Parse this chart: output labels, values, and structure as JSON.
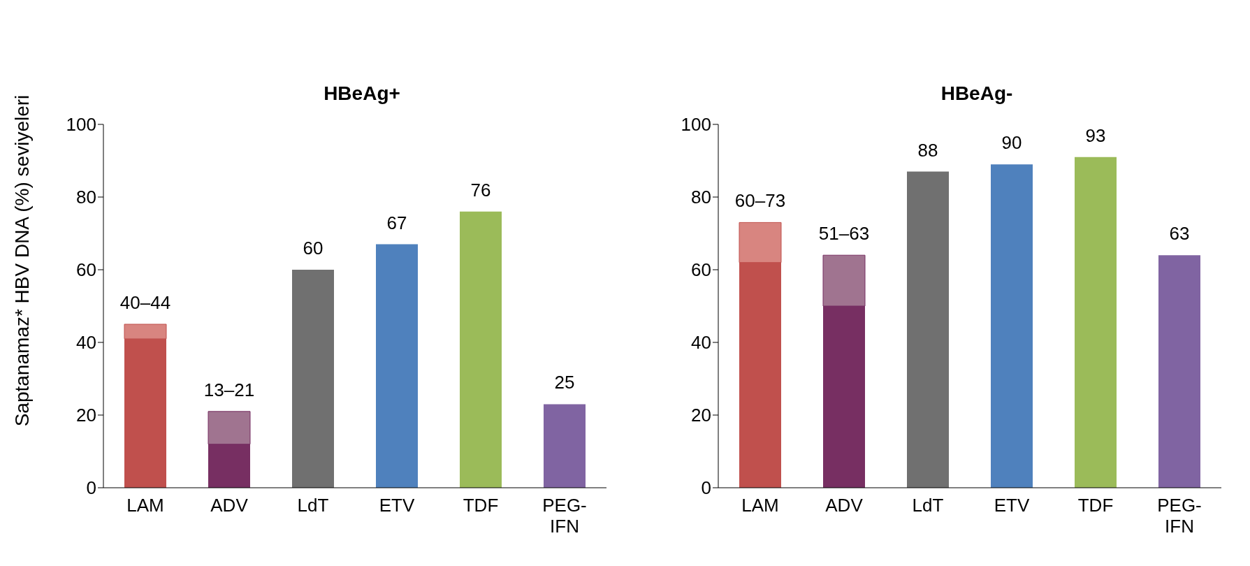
{
  "chart_data": [
    {
      "type": "bar",
      "title": "HBeAg+",
      "ylabel": "Saptanamaz* HBV DNA (%) seviyeleri",
      "categories": [
        "LAM",
        "ADV",
        "LdT",
        "ETV",
        "TDF",
        "PEG-IFN"
      ],
      "stacked": true,
      "ylim": [
        0,
        100
      ],
      "yticks": [
        0,
        20,
        40,
        60,
        80,
        100
      ],
      "grid": false,
      "legend": false,
      "series": [
        {
          "values": [
            41,
            12,
            60,
            67,
            76,
            23
          ],
          "colors": [
            "#c0504d",
            "#772f62",
            "#707070",
            "#4f81bd",
            "#9bbb59",
            "#8064a2"
          ]
        },
        {
          "values": [
            4,
            9,
            null,
            null,
            null,
            null
          ],
          "colors": [
            "#d88580",
            "#a07490",
            null,
            null,
            null,
            null
          ]
        }
      ],
      "value_labels": [
        "40–44",
        "13–21",
        "60",
        "67",
        "76",
        "25"
      ]
    },
    {
      "type": "bar",
      "title": "HBeAg-",
      "categories": [
        "LAM",
        "ADV",
        "LdT",
        "ETV",
        "TDF",
        "PEG-IFN"
      ],
      "stacked": true,
      "ylim": [
        0,
        100
      ],
      "yticks": [
        0,
        20,
        40,
        60,
        80,
        100
      ],
      "grid": false,
      "legend": false,
      "series": [
        {
          "values": [
            62,
            50,
            87,
            89,
            91,
            64
          ],
          "colors": [
            "#c0504d",
            "#772f62",
            "#707070",
            "#4f81bd",
            "#9bbb59",
            "#8064a2"
          ]
        },
        {
          "values": [
            11,
            14,
            null,
            null,
            null,
            null
          ],
          "colors": [
            "#d88580",
            "#a07490",
            null,
            null,
            null,
            null
          ]
        }
      ],
      "value_labels": [
        "60–73",
        "51–63",
        "88",
        "90",
        "93",
        "63"
      ]
    }
  ]
}
